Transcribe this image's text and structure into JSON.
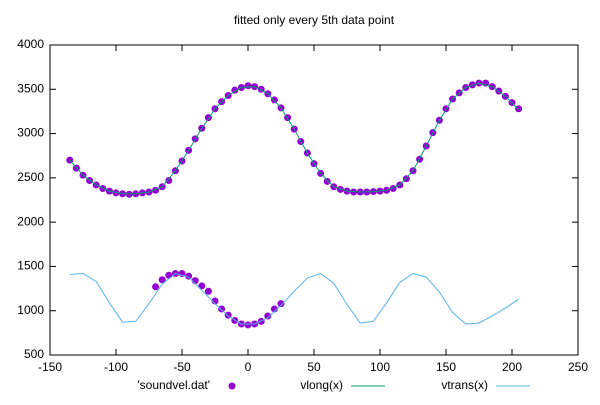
{
  "chart_data": {
    "type": "mixed",
    "title": "fitted only every 5th data point",
    "xlim": [
      -150,
      250
    ],
    "xticks": [
      -150,
      -100,
      -50,
      0,
      50,
      100,
      150,
      200,
      250
    ],
    "ylim": [
      500,
      4000
    ],
    "yticks": [
      500,
      1000,
      1500,
      2000,
      2500,
      3000,
      3500,
      4000
    ],
    "series": [
      {
        "name": "'soundvel.dat'",
        "type": "scatter",
        "color": "#9400d3",
        "x": [
          -135,
          -130,
          -125,
          -120,
          -115,
          -110,
          -105,
          -100,
          -95,
          -90,
          -85,
          -80,
          -75,
          -70,
          -65,
          -60,
          -55,
          -50,
          -45,
          -40,
          -35,
          -30,
          -25,
          -20,
          -15,
          -10,
          -5,
          0,
          5,
          10,
          15,
          20,
          25,
          30,
          35,
          40,
          45,
          50,
          55,
          60,
          65,
          70,
          75,
          80,
          85,
          90,
          95,
          100,
          105,
          110,
          115,
          120,
          125,
          130,
          135,
          140,
          145,
          150,
          155,
          160,
          165,
          170,
          175,
          180,
          185,
          190,
          195,
          200,
          205,
          -70,
          -65,
          -60,
          -55,
          -50,
          -45,
          -40,
          -35,
          -30,
          -25,
          -20,
          -15,
          -10,
          -5,
          0,
          5,
          10,
          15,
          20,
          25
        ],
        "values": [
          2700,
          2610,
          2530,
          2470,
          2420,
          2380,
          2350,
          2330,
          2320,
          2315,
          2320,
          2330,
          2340,
          2360,
          2400,
          2470,
          2580,
          2690,
          2810,
          2940,
          3060,
          3180,
          3280,
          3360,
          3430,
          3490,
          3520,
          3540,
          3530,
          3500,
          3450,
          3380,
          3290,
          3180,
          3050,
          2910,
          2780,
          2660,
          2550,
          2460,
          2400,
          2370,
          2350,
          2340,
          2340,
          2340,
          2345,
          2350,
          2360,
          2380,
          2420,
          2490,
          2580,
          2710,
          2860,
          3010,
          3150,
          3280,
          3390,
          3460,
          3520,
          3550,
          3570,
          3570,
          3530,
          3480,
          3420,
          3350,
          3280,
          1270,
          1350,
          1400,
          1420,
          1420,
          1390,
          1340,
          1280,
          1220,
          1110,
          1020,
          950,
          890,
          850,
          840,
          850,
          880,
          940,
          1020,
          1080
        ]
      },
      {
        "name": "vlong(x)",
        "type": "line",
        "color": "#009e73",
        "x": [
          -135,
          -125,
          -115,
          -105,
          -95,
          -85,
          -75,
          -65,
          -55,
          -45,
          -35,
          -25,
          -15,
          -5,
          5,
          15,
          25,
          35,
          45,
          55,
          65,
          75,
          85,
          95,
          105,
          115,
          125,
          135,
          145,
          155,
          165,
          175,
          185,
          195,
          205
        ],
        "values": [
          2700,
          2530,
          2420,
          2350,
          2320,
          2320,
          2340,
          2400,
          2580,
          2810,
          3060,
          3280,
          3430,
          3520,
          3530,
          3450,
          3290,
          3050,
          2780,
          2550,
          2400,
          2350,
          2340,
          2345,
          2360,
          2420,
          2580,
          2860,
          3150,
          3390,
          3520,
          3570,
          3530,
          3420,
          3270
        ]
      },
      {
        "name": "vtrans(x)",
        "type": "line",
        "color": "#56b4e9",
        "x": [
          -135,
          -125,
          -115,
          -105,
          -95,
          -85,
          -75,
          -65,
          -55,
          -45,
          -35,
          -25,
          -15,
          -5,
          5,
          15,
          25,
          35,
          45,
          55,
          65,
          75,
          85,
          95,
          105,
          115,
          125,
          135,
          145,
          155,
          165,
          175,
          185,
          195,
          205
        ],
        "values": [
          1410,
          1420,
          1330,
          1090,
          870,
          880,
          1080,
          1300,
          1420,
          1380,
          1230,
          1080,
          940,
          850,
          850,
          920,
          1060,
          1220,
          1370,
          1420,
          1310,
          1070,
          860,
          880,
          1090,
          1320,
          1420,
          1380,
          1210,
          980,
          850,
          860,
          940,
          1030,
          1130
        ]
      }
    ]
  }
}
